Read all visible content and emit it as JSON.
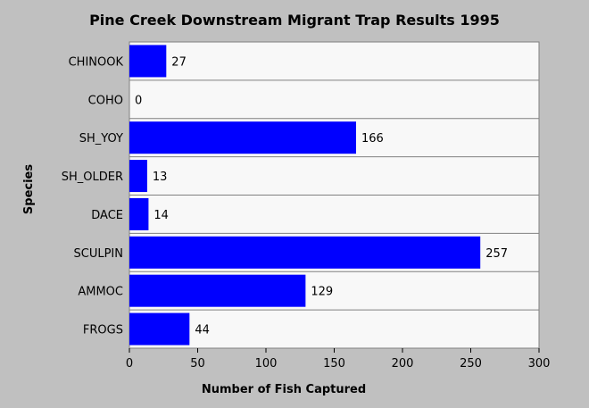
{
  "chart_data": {
    "type": "bar",
    "orientation": "horizontal",
    "title": "Pine Creek Downstream Migrant Trap Results 1995",
    "xlabel": "Number of Fish Captured",
    "ylabel": "Species",
    "categories": [
      "CHINOOK",
      "COHO",
      "SH_YOY",
      "SH_OLDER",
      "DACE",
      "SCULPIN",
      "AMMOC",
      "FROGS"
    ],
    "values": [
      27,
      0,
      166,
      13,
      14,
      257,
      129,
      44
    ],
    "xlim": [
      0,
      300
    ],
    "xticks": [
      0,
      50,
      100,
      150,
      200,
      250,
      300
    ],
    "bar_color": "#0000ff",
    "plot_background": "#f8f8f8",
    "gridlines": "horizontal separators",
    "legend": "none"
  }
}
